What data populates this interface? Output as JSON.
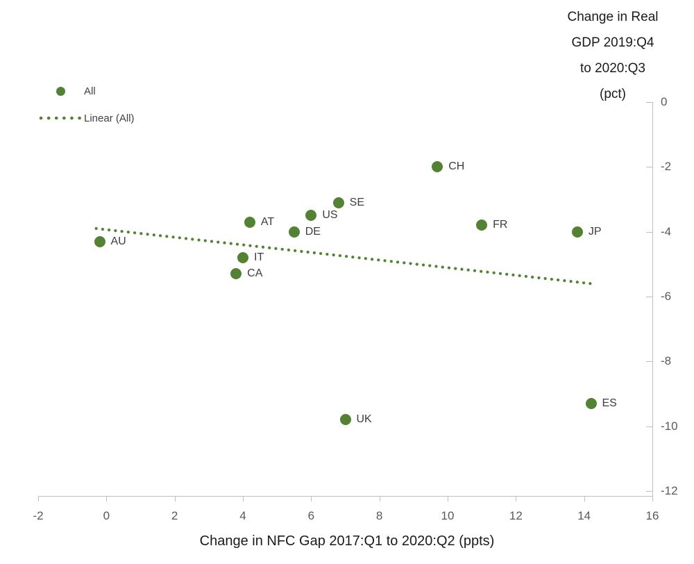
{
  "y_axis_title": {
    "lines": [
      "Change in Real",
      "GDP 2019:Q4",
      "to 2020:Q3",
      "(pct)"
    ]
  },
  "x_axis_title": "Change in NFC Gap 2017:Q1 to 2020:Q2 (ppts)",
  "legend": {
    "items": [
      {
        "label": "All",
        "marker": "dot"
      },
      {
        "label": "Linear (All)",
        "marker": "dotted-line"
      }
    ]
  },
  "chart_data": {
    "type": "scatter",
    "title": "Change in Real GDP 2019:Q4 to 2020:Q3 (pct)",
    "xlabel": "Change in NFC Gap 2017:Q1 to 2020:Q2 (ppts)",
    "ylabel": "Change in Real GDP 2019:Q4 to 2020:Q3 (pct)",
    "xlim": [
      -2,
      16
    ],
    "ylim": [
      -12,
      0
    ],
    "x_ticks": [
      -2,
      0,
      2,
      4,
      6,
      8,
      10,
      12,
      14,
      16
    ],
    "y_ticks": [
      0,
      -2,
      -4,
      -6,
      -8,
      -10,
      -12
    ],
    "grid": false,
    "legend_position": "top-left",
    "series": [
      {
        "name": "All",
        "color": "#548235",
        "points": [
          {
            "label": "AU",
            "x": -0.2,
            "y": -4.3
          },
          {
            "label": "CA",
            "x": 3.8,
            "y": -5.3
          },
          {
            "label": "IT",
            "x": 4.0,
            "y": -4.8
          },
          {
            "label": "AT",
            "x": 4.2,
            "y": -3.7
          },
          {
            "label": "DE",
            "x": 5.5,
            "y": -4.0
          },
          {
            "label": "US",
            "x": 6.0,
            "y": -3.5
          },
          {
            "label": "SE",
            "x": 6.8,
            "y": -3.1
          },
          {
            "label": "UK",
            "x": 7.0,
            "y": -9.8
          },
          {
            "label": "CH",
            "x": 9.7,
            "y": -2.0
          },
          {
            "label": "FR",
            "x": 11.0,
            "y": -3.8
          },
          {
            "label": "JP",
            "x": 13.8,
            "y": -4.0
          },
          {
            "label": "ES",
            "x": 14.2,
            "y": -9.3
          }
        ]
      }
    ],
    "trendline": {
      "name": "Linear (All)",
      "style": "dotted",
      "color": "#548235",
      "x_start": -0.3,
      "y_start": -3.9,
      "x_end": 14.2,
      "y_end": -5.6
    },
    "colors": {
      "series": "#548235",
      "axis_line": "#bfbfbf",
      "tick_text": "#595959",
      "point_label_text": "#3d3d3d",
      "title_text": "#1a1a1a"
    }
  }
}
